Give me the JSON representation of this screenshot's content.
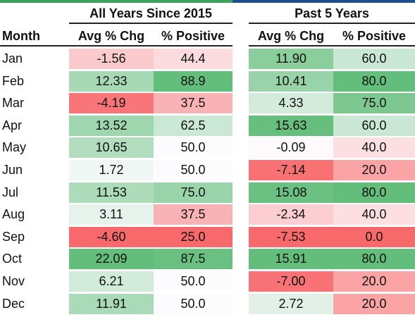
{
  "groups": [
    {
      "title": "All Years Since 2015"
    },
    {
      "title": "Past 5 Years"
    }
  ],
  "headers": {
    "month": "Month",
    "avg": "Avg % Chg",
    "pos": "% Positive"
  },
  "chart_data": {
    "type": "table",
    "columns": [
      "Month",
      "All Years Since 2015 Avg % Chg",
      "All Years Since 2015 % Positive",
      "Past 5 Years Avg % Chg",
      "Past 5 Years % Positive"
    ],
    "rows": [
      {
        "month": "Jan",
        "all_avg": "-1.56",
        "all_pos": "44.4",
        "p5_avg": "11.90",
        "p5_pos": "60.0"
      },
      {
        "month": "Feb",
        "all_avg": "12.33",
        "all_pos": "88.9",
        "p5_avg": "10.41",
        "p5_pos": "80.0"
      },
      {
        "month": "Mar",
        "all_avg": "-4.19",
        "all_pos": "37.5",
        "p5_avg": "4.33",
        "p5_pos": "75.0"
      },
      {
        "month": "Apr",
        "all_avg": "13.52",
        "all_pos": "62.5",
        "p5_avg": "15.63",
        "p5_pos": "60.0"
      },
      {
        "month": "May",
        "all_avg": "10.65",
        "all_pos": "50.0",
        "p5_avg": "-0.09",
        "p5_pos": "40.0"
      },
      {
        "month": "Jun",
        "all_avg": "1.72",
        "all_pos": "50.0",
        "p5_avg": "-7.14",
        "p5_pos": "20.0"
      },
      {
        "month": "Jul",
        "all_avg": "11.53",
        "all_pos": "75.0",
        "p5_avg": "15.08",
        "p5_pos": "80.0"
      },
      {
        "month": "Aug",
        "all_avg": "3.11",
        "all_pos": "37.5",
        "p5_avg": "-2.34",
        "p5_pos": "40.0"
      },
      {
        "month": "Sep",
        "all_avg": "-4.60",
        "all_pos": "25.0",
        "p5_avg": "-7.53",
        "p5_pos": "0.0"
      },
      {
        "month": "Oct",
        "all_avg": "22.09",
        "all_pos": "87.5",
        "p5_avg": "15.91",
        "p5_pos": "80.0"
      },
      {
        "month": "Nov",
        "all_avg": "6.21",
        "all_pos": "50.0",
        "p5_avg": "-7.00",
        "p5_pos": "20.0"
      },
      {
        "month": "Dec",
        "all_avg": "11.91",
        "all_pos": "50.0",
        "p5_avg": "2.72",
        "p5_pos": "20.0"
      }
    ],
    "colors": {
      "strong_green": "#63be7b",
      "strong_red": "#f8696b",
      "neutral": "#fcfcff"
    }
  }
}
